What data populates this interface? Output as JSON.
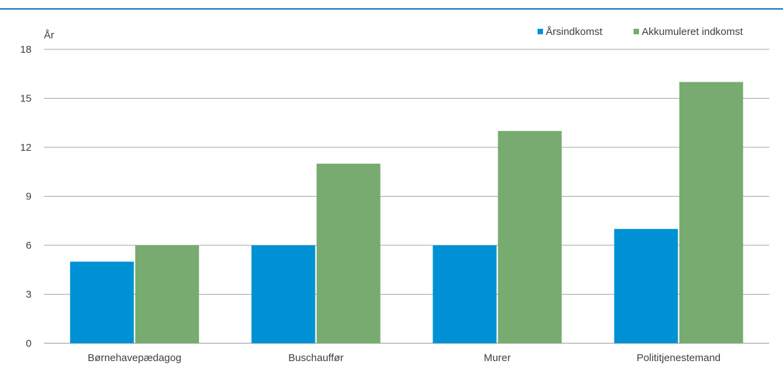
{
  "chart_data": {
    "type": "bar",
    "title": "",
    "ylabel": "År",
    "xlabel": "",
    "categories": [
      "Børnehavepædagog",
      "Buschauffør",
      "Murer",
      "Polititjenestemand"
    ],
    "series": [
      {
        "name": "Årsindkomst",
        "color": "#0091d5",
        "values": [
          5,
          6,
          6,
          7
        ]
      },
      {
        "name": "Akkumuleret indkomst",
        "color": "#77ab6f",
        "values": [
          6,
          11,
          13,
          16
        ]
      }
    ],
    "ylim": [
      0,
      18
    ],
    "yticks": [
      0,
      3,
      6,
      9,
      12,
      15,
      18
    ],
    "grid": true,
    "legend_position": "top-right"
  }
}
